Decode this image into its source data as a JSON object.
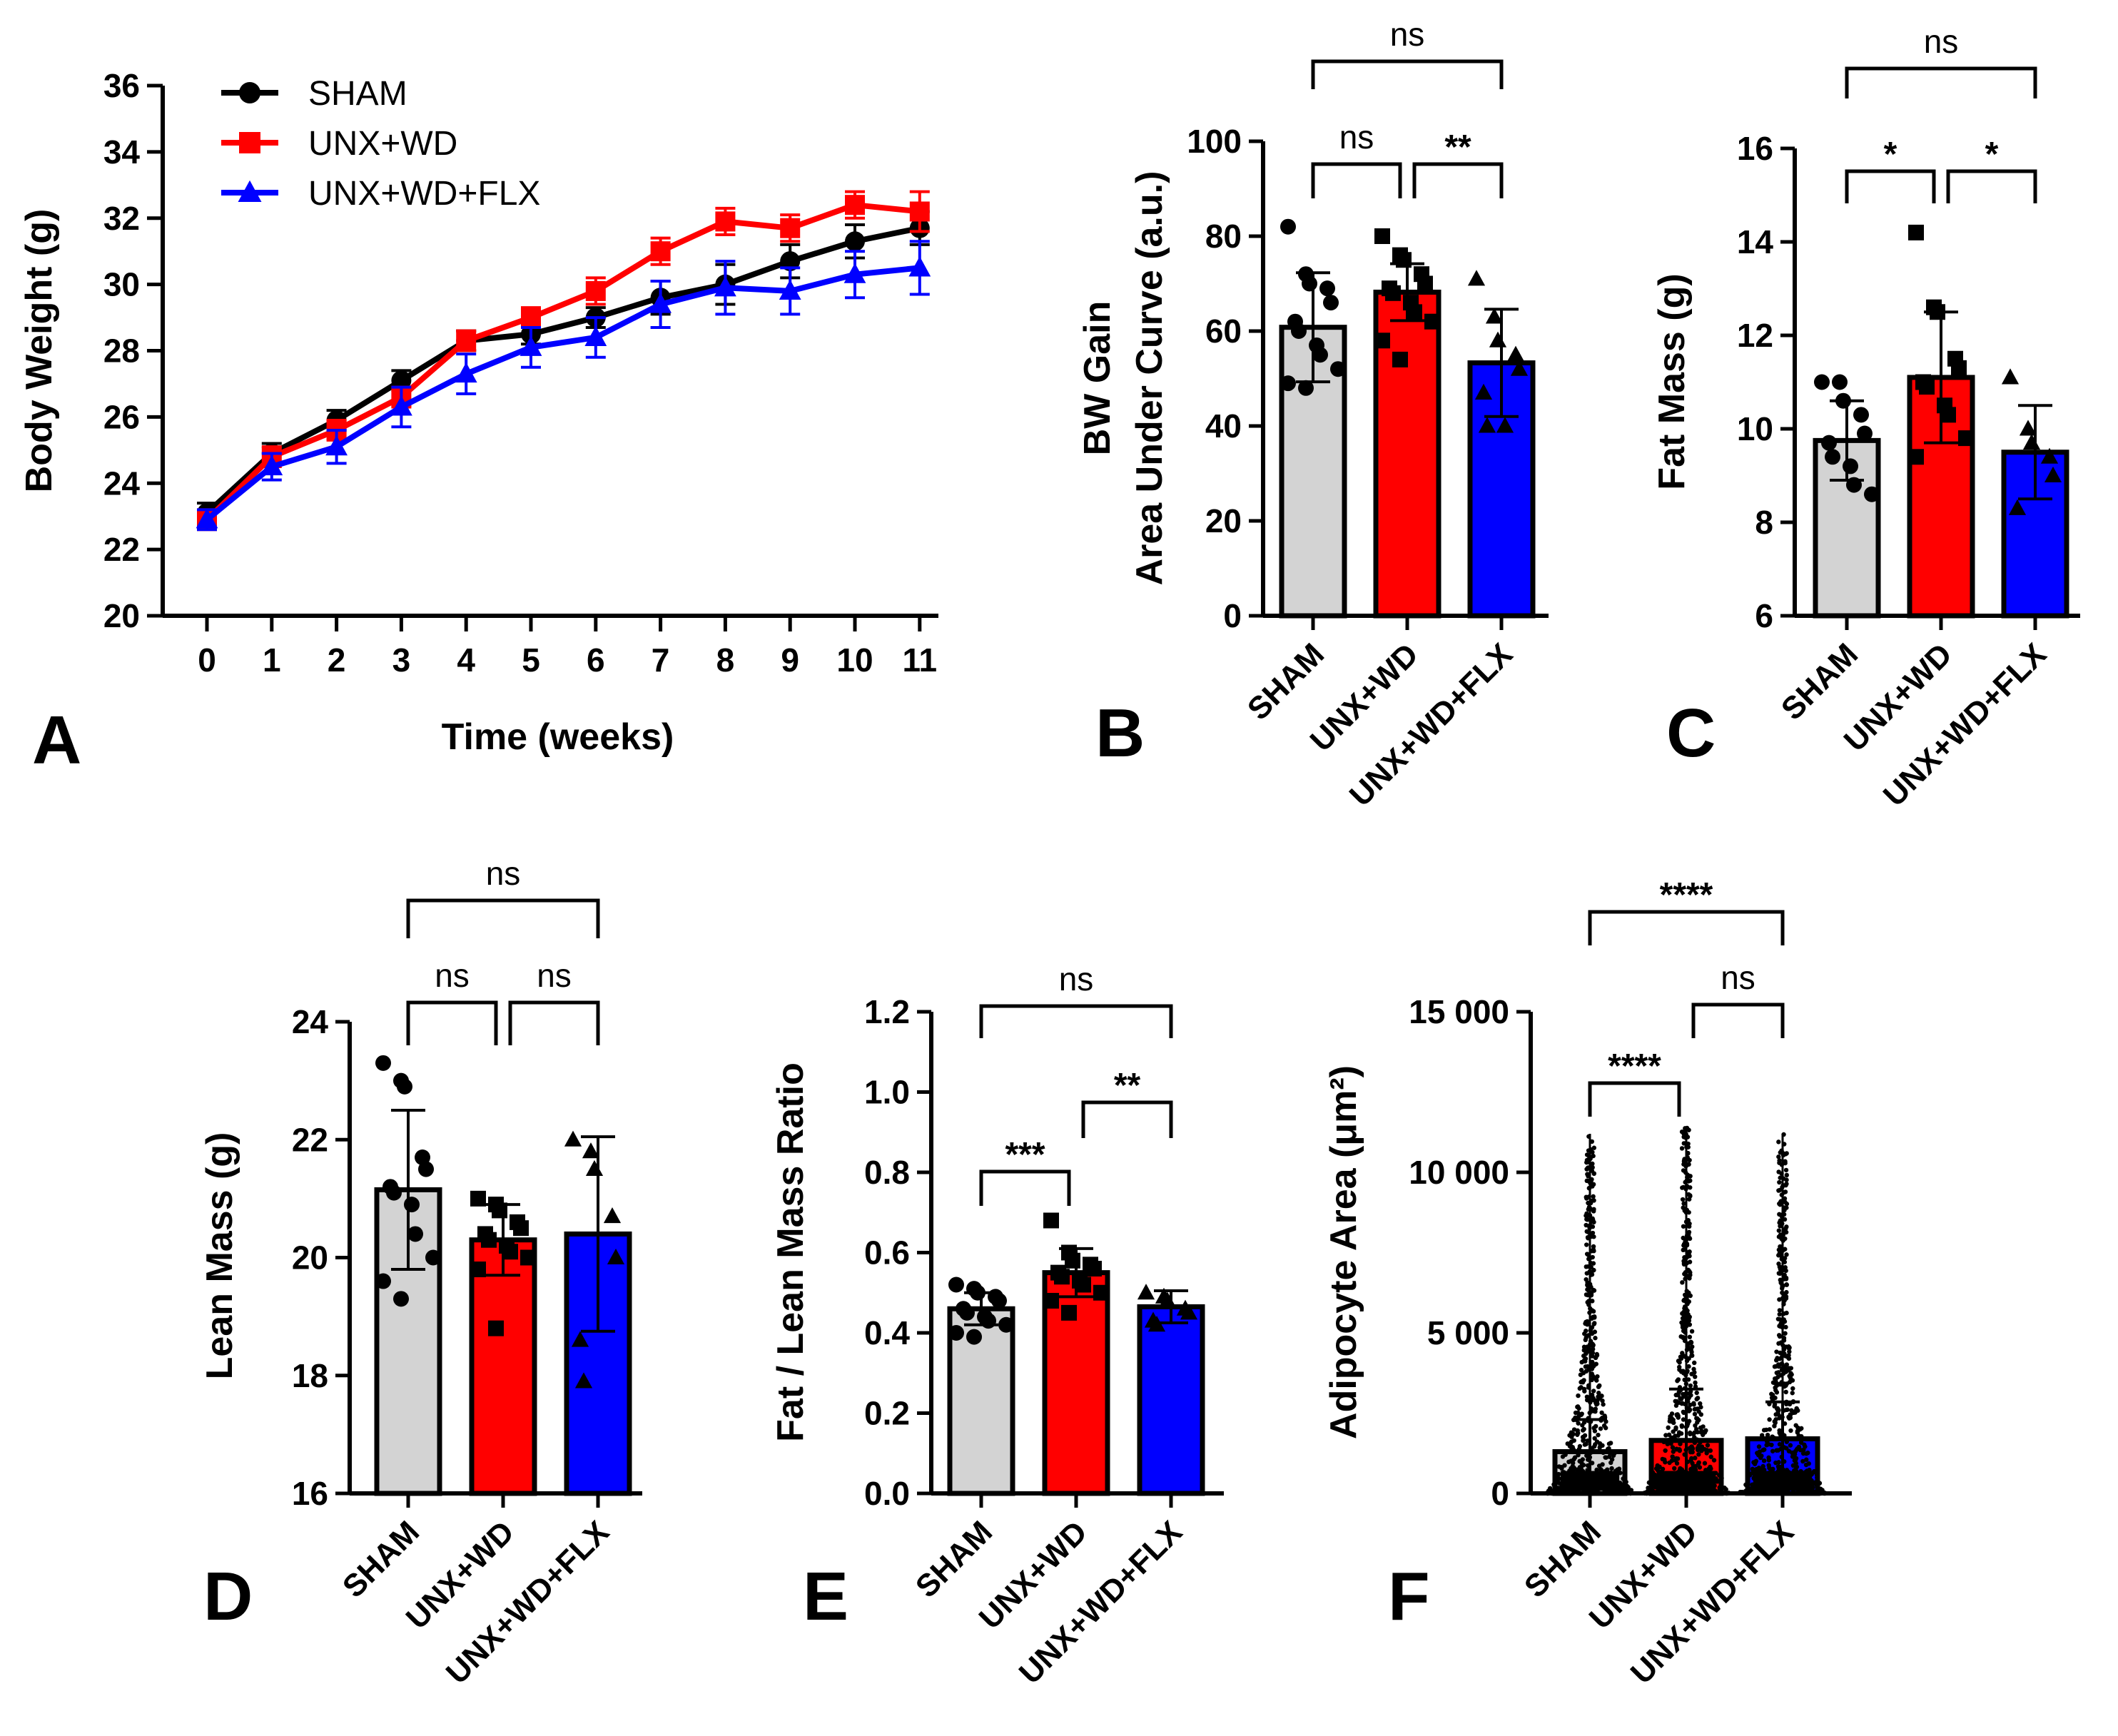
{
  "figure": {
    "panel_letters": [
      "A",
      "B",
      "C",
      "D",
      "E",
      "F"
    ]
  },
  "chart_data": [
    {
      "panel": "A",
      "type": "line",
      "xlabel": "Time (weeks)",
      "ylabel": "Body Weight (g)",
      "ylim": [
        20,
        36
      ],
      "yticks": [
        20,
        22,
        24,
        26,
        28,
        30,
        32,
        34,
        36
      ],
      "x": [
        0,
        1,
        2,
        3,
        4,
        5,
        6,
        7,
        8,
        9,
        10,
        11
      ],
      "legend": "top-left",
      "series": [
        {
          "name": "SHAM",
          "color": "#000000",
          "marker": "circle",
          "values": [
            23.1,
            24.9,
            25.9,
            27.1,
            28.3,
            28.5,
            29.0,
            29.6,
            30.0,
            30.7,
            31.3,
            31.7
          ],
          "errors": [
            0.3,
            0.3,
            0.3,
            0.3,
            0.3,
            0.3,
            0.3,
            0.5,
            0.6,
            0.5,
            0.5,
            0.5
          ]
        },
        {
          "name": "UNX+WD",
          "color": "#ff0000",
          "marker": "square",
          "values": [
            22.9,
            24.8,
            25.6,
            26.6,
            28.3,
            29.0,
            29.8,
            31.0,
            31.9,
            31.7,
            32.4,
            32.2
          ],
          "errors": [
            0.3,
            0.3,
            0.3,
            0.3,
            0.3,
            0.3,
            0.4,
            0.4,
            0.4,
            0.4,
            0.4,
            0.6
          ]
        },
        {
          "name": "UNX+WD+FLX",
          "color": "#0000ff",
          "marker": "triangle",
          "values": [
            22.9,
            24.5,
            25.1,
            26.3,
            27.3,
            28.1,
            28.4,
            29.4,
            29.9,
            29.8,
            30.3,
            30.5
          ],
          "errors": [
            0.3,
            0.4,
            0.5,
            0.6,
            0.6,
            0.6,
            0.6,
            0.7,
            0.8,
            0.7,
            0.7,
            0.8
          ]
        }
      ]
    },
    {
      "panel": "B",
      "type": "bar",
      "ylabel_lines": [
        "BW Gain",
        "Area Under Curve (a.u.)"
      ],
      "ylim": [
        0,
        100
      ],
      "yticks": [
        0,
        20,
        40,
        60,
        80,
        100
      ],
      "categories": [
        "SHAM",
        "UNX+WD",
        "UNX+WD+FLX"
      ],
      "colors": [
        "#d3d3d3",
        "#ff0000",
        "#0000ff"
      ],
      "markers": [
        "circle",
        "square",
        "triangle"
      ],
      "values": [
        60.8,
        68.2,
        53.3
      ],
      "sd": [
        11.5,
        6.0,
        11.3
      ],
      "points": [
        [
          82,
          72,
          70,
          69,
          66,
          62,
          60,
          57,
          55,
          52,
          49,
          48
        ],
        [
          80,
          76,
          75,
          72,
          70,
          69,
          68,
          66,
          64,
          62,
          58,
          54
        ],
        [
          71,
          63,
          58,
          55,
          52,
          47,
          40,
          40
        ]
      ],
      "comparisons": [
        {
          "from": 0,
          "to": 1,
          "label": "ns"
        },
        {
          "from": 1,
          "to": 2,
          "label": "**"
        },
        {
          "from": 0,
          "to": 2,
          "label": "ns"
        }
      ]
    },
    {
      "panel": "C",
      "type": "bar",
      "ylabel": "Fat Mass (g)",
      "ylim": [
        6,
        16
      ],
      "yticks": [
        6,
        8,
        10,
        12,
        14,
        16
      ],
      "categories": [
        "SHAM",
        "UNX+WD",
        "UNX+WD+FLX"
      ],
      "colors": [
        "#d3d3d3",
        "#ff0000",
        "#0000ff"
      ],
      "markers": [
        "circle",
        "square",
        "triangle"
      ],
      "values": [
        9.75,
        11.1,
        9.5
      ],
      "sd": [
        0.85,
        1.4,
        1.0
      ],
      "points": [
        [
          11.0,
          11.0,
          10.6,
          10.3,
          9.9,
          9.7,
          9.4,
          9.2,
          8.8,
          8.6
        ],
        [
          14.2,
          12.6,
          12.5,
          11.5,
          11.3,
          11.0,
          10.9,
          10.5,
          10.3,
          9.8,
          9.4
        ],
        [
          11.1,
          10.0,
          9.7,
          9.4,
          9.0,
          8.3
        ]
      ],
      "comparisons": [
        {
          "from": 0,
          "to": 1,
          "label": "*"
        },
        {
          "from": 1,
          "to": 2,
          "label": "*"
        },
        {
          "from": 0,
          "to": 2,
          "label": "ns"
        }
      ]
    },
    {
      "panel": "D",
      "type": "bar",
      "ylabel": "Lean Mass (g)",
      "ylim": [
        16,
        24
      ],
      "yticks": [
        16,
        18,
        20,
        22,
        24
      ],
      "categories": [
        "SHAM",
        "UNX+WD",
        "UNX+WD+FLX"
      ],
      "colors": [
        "#d3d3d3",
        "#ff0000",
        "#0000ff"
      ],
      "markers": [
        "circle",
        "square",
        "triangle"
      ],
      "values": [
        21.15,
        20.3,
        20.4
      ],
      "sd": [
        1.35,
        0.6,
        1.65
      ],
      "points": [
        [
          23.3,
          23.0,
          22.9,
          21.7,
          21.5,
          21.2,
          21.1,
          20.9,
          20.4,
          20.0,
          19.6,
          19.3
        ],
        [
          21.0,
          20.9,
          20.8,
          20.6,
          20.5,
          20.4,
          20.3,
          20.2,
          20.1,
          20.0,
          19.8,
          18.8
        ],
        [
          22.0,
          21.8,
          21.5,
          20.7,
          20.0,
          18.6,
          17.9
        ]
      ],
      "comparisons": [
        {
          "from": 0,
          "to": 1,
          "label": "ns"
        },
        {
          "from": 1,
          "to": 2,
          "label": "ns"
        },
        {
          "from": 0,
          "to": 2,
          "label": "ns"
        }
      ]
    },
    {
      "panel": "E",
      "type": "bar",
      "ylabel": "Fat / Lean Mass Ratio",
      "ylim": [
        0.0,
        1.2
      ],
      "yticks": [
        0.0,
        0.2,
        0.4,
        0.6,
        0.8,
        1.0,
        1.2
      ],
      "categories": [
        "SHAM",
        "UNX+WD",
        "UNX+WD+FLX"
      ],
      "colors": [
        "#d3d3d3",
        "#ff0000",
        "#0000ff"
      ],
      "markers": [
        "circle",
        "square",
        "triangle"
      ],
      "values": [
        0.46,
        0.55,
        0.465
      ],
      "sd": [
        0.04,
        0.06,
        0.04
      ],
      "points": [
        [
          0.52,
          0.51,
          0.5,
          0.49,
          0.48,
          0.46,
          0.45,
          0.44,
          0.43,
          0.42,
          0.4,
          0.39
        ],
        [
          0.68,
          0.6,
          0.58,
          0.57,
          0.56,
          0.55,
          0.54,
          0.53,
          0.52,
          0.5,
          0.48,
          0.45
        ],
        [
          0.5,
          0.49,
          0.48,
          0.46,
          0.45,
          0.43,
          0.42
        ]
      ],
      "comparisons": [
        {
          "from": 0,
          "to": 1,
          "label": "***"
        },
        {
          "from": 1,
          "to": 2,
          "label": "**"
        },
        {
          "from": 0,
          "to": 2,
          "label": "ns"
        }
      ]
    },
    {
      "panel": "F",
      "type": "bar",
      "ylabel": "Adipocyte Area (μm²)",
      "ylim": [
        0,
        15000
      ],
      "yticks": [
        0,
        5000,
        10000,
        15000
      ],
      "ytick_labels": [
        "0",
        "5 000",
        "10 000",
        "15 000"
      ],
      "categories": [
        "SHAM",
        "UNX+WD",
        "UNX+WD+FLX"
      ],
      "colors": [
        "#d3d3d3",
        "#ff0000",
        "#0000ff"
      ],
      "values": [
        1300,
        1650,
        1700
      ],
      "sd": [
        1000,
        1600,
        1150
      ],
      "point_max": [
        11200,
        11400,
        11200
      ],
      "comparisons": [
        {
          "from": 0,
          "to": 1,
          "label": "****"
        },
        {
          "from": 1,
          "to": 2,
          "label": "ns"
        },
        {
          "from": 0,
          "to": 2,
          "label": "****"
        }
      ]
    }
  ]
}
